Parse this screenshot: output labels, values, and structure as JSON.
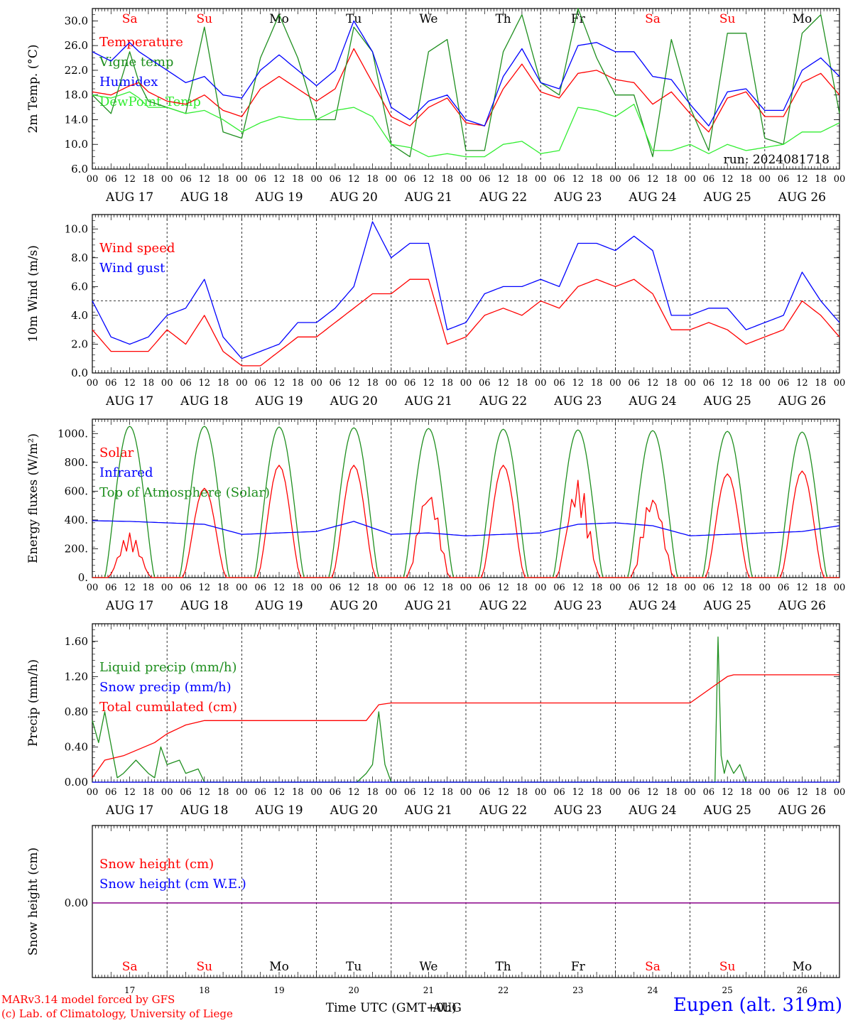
{
  "colors": {
    "red": "#ff0000",
    "dark_green": "#1f8f1f",
    "blue": "#0000ff",
    "light_green": "#33ee33",
    "purple": "#880088"
  },
  "days": {
    "abbr": [
      "Sa",
      "Su",
      "Mo",
      "Tu",
      "We",
      "Th",
      "Fr",
      "Sa",
      "Su",
      "Mo"
    ],
    "weekend": [
      true,
      true,
      false,
      false,
      false,
      false,
      false,
      true,
      true,
      false
    ],
    "labels": [
      "AUG 17",
      "AUG 18",
      "AUG 19",
      "AUG 20",
      "AUG 21",
      "AUG 22",
      "AUG 23",
      "AUG 24",
      "AUG 25",
      "AUG 26"
    ],
    "numbers": [
      "17",
      "18",
      "19",
      "20",
      "21",
      "22",
      "23",
      "24",
      "25",
      "26"
    ],
    "hour_ticks": [
      "00",
      "06",
      "12",
      "18"
    ],
    "end_tick": "00"
  },
  "footer": {
    "credit_line1": "MARv3.14 model forced by GFS",
    "credit_line2": "(c) Lab. of Climatology, University of Liege",
    "xlabel": "Time UTC (GMT+0h)",
    "month": "AUG",
    "station": "Eupen (alt. 319m)"
  },
  "chart_data": [
    {
      "type": "line",
      "ylabel": "2m Temp. (°C)",
      "ylim": [
        6,
        32
      ],
      "yticks": [
        "30.0",
        "26.0",
        "22.0",
        "18.0",
        "14.0",
        "10.0",
        "6.0"
      ],
      "run_label": "run: 2024081718",
      "x_unit": "hours since 2024-08-17 00 UTC",
      "series": [
        {
          "name": "Temperature",
          "color": "red",
          "x": [
            0,
            6,
            12,
            15,
            18,
            24,
            30,
            36,
            42,
            48,
            54,
            60,
            66,
            72,
            78,
            84,
            90,
            96,
            102,
            108,
            114,
            120,
            126,
            132,
            138,
            144,
            150,
            156,
            162,
            168,
            174,
            180,
            186,
            192,
            198,
            204,
            210,
            216,
            222,
            228,
            234,
            240
          ],
          "values": [
            18.5,
            18,
            19.5,
            20,
            18.5,
            17,
            16.5,
            18,
            15.5,
            14.5,
            19,
            21,
            19,
            17,
            19,
            25.5,
            20,
            14.5,
            13,
            16,
            17.5,
            13.5,
            13,
            19,
            23,
            18.5,
            17.5,
            21.5,
            22,
            20.5,
            20,
            16.5,
            18.5,
            15,
            12,
            17.5,
            18.5,
            14.5,
            14.5,
            20,
            21.5,
            18
          ]
        },
        {
          "name": "Vigne temp",
          "color": "dark_green",
          "x": [
            0,
            6,
            12,
            15,
            18,
            24,
            30,
            36,
            42,
            48,
            54,
            60,
            66,
            72,
            78,
            84,
            90,
            96,
            102,
            108,
            114,
            120,
            126,
            132,
            138,
            144,
            150,
            156,
            162,
            168,
            174,
            180,
            186,
            192,
            198,
            204,
            210,
            216,
            222,
            228,
            234,
            240
          ],
          "values": [
            18,
            15,
            25,
            20,
            17,
            16,
            15,
            29,
            12,
            11,
            24,
            31,
            24,
            14,
            14,
            29,
            25,
            10,
            8,
            25,
            27,
            9,
            9,
            25,
            31,
            20,
            18,
            32,
            24,
            18,
            18,
            8,
            27,
            16,
            9,
            28,
            28,
            11,
            10,
            28,
            31,
            15
          ]
        },
        {
          "name": "Humidex",
          "color": "blue",
          "x": [
            0,
            6,
            12,
            15,
            18,
            24,
            30,
            36,
            42,
            48,
            54,
            60,
            66,
            72,
            78,
            84,
            90,
            96,
            102,
            108,
            114,
            120,
            126,
            132,
            138,
            144,
            150,
            156,
            162,
            168,
            174,
            180,
            186,
            192,
            198,
            204,
            210,
            216,
            222,
            228,
            234,
            240
          ],
          "values": [
            25,
            23.5,
            26.5,
            25,
            24,
            22,
            20,
            21,
            18,
            17.5,
            22,
            24.5,
            22,
            19.5,
            22,
            30,
            25,
            16,
            14,
            17,
            18,
            14,
            13,
            21,
            25.5,
            20,
            19,
            26,
            26.5,
            25,
            25,
            21,
            20.5,
            16.5,
            13,
            18.5,
            19,
            15.5,
            15.5,
            22,
            24,
            21
          ]
        },
        {
          "name": "DewPoint Temp",
          "color": "light_green",
          "x": [
            0,
            6,
            12,
            15,
            18,
            24,
            30,
            36,
            42,
            48,
            54,
            60,
            66,
            72,
            78,
            84,
            90,
            96,
            102,
            108,
            114,
            120,
            126,
            132,
            138,
            144,
            150,
            156,
            162,
            168,
            174,
            180,
            186,
            192,
            198,
            204,
            210,
            216,
            222,
            228,
            234,
            240
          ],
          "values": [
            18,
            17.5,
            18.5,
            17.5,
            16,
            16,
            15,
            15.5,
            14,
            12,
            13.5,
            14.5,
            14,
            14,
            15.5,
            16,
            14.5,
            10,
            9.5,
            8,
            8.5,
            8,
            8,
            10,
            10.5,
            8.5,
            9,
            16,
            15.5,
            14.5,
            16.5,
            9,
            9,
            10,
            8.5,
            10,
            9,
            9.5,
            10,
            12,
            12,
            13.5
          ]
        }
      ]
    },
    {
      "type": "line",
      "ylabel": "10m Wind (m/s)",
      "ylim": [
        0,
        11
      ],
      "yticks": [
        "10.0",
        "8.0",
        "6.0",
        "4.0",
        "2.0",
        "0.0"
      ],
      "reference_line": 5,
      "x_unit": "hours since 2024-08-17 00 UTC",
      "series": [
        {
          "name": "Wind speed",
          "color": "red",
          "x": [
            0,
            6,
            12,
            18,
            24,
            30,
            36,
            42,
            48,
            54,
            60,
            66,
            72,
            78,
            84,
            90,
            96,
            102,
            108,
            114,
            120,
            126,
            132,
            138,
            144,
            150,
            156,
            162,
            168,
            174,
            180,
            186,
            192,
            198,
            204,
            210,
            216,
            222,
            228,
            234,
            240
          ],
          "values": [
            3,
            1.5,
            1.5,
            1.5,
            3,
            2,
            4,
            1.5,
            0.5,
            0.5,
            1.5,
            2.5,
            2.5,
            3.5,
            4.5,
            5.5,
            5.5,
            6.5,
            6.5,
            2,
            2.5,
            4,
            4.5,
            4,
            5,
            4.5,
            6,
            6.5,
            6,
            6.5,
            5.5,
            3,
            3,
            3.5,
            3,
            2,
            2.5,
            3,
            5,
            4,
            2.5
          ]
        },
        {
          "name": "Wind gust",
          "color": "blue",
          "x": [
            0,
            6,
            12,
            18,
            24,
            30,
            36,
            42,
            48,
            54,
            60,
            66,
            72,
            78,
            84,
            90,
            96,
            102,
            108,
            114,
            120,
            126,
            132,
            138,
            144,
            150,
            156,
            162,
            168,
            174,
            180,
            186,
            192,
            198,
            204,
            210,
            216,
            222,
            228,
            234,
            240
          ],
          "values": [
            5,
            2.5,
            2,
            2.5,
            4,
            4.5,
            6.5,
            2.5,
            1,
            1.5,
            2,
            3.5,
            3.5,
            4.5,
            6,
            10.5,
            8,
            9,
            9,
            3,
            3.5,
            5.5,
            6,
            6,
            6.5,
            6,
            9,
            9,
            8.5,
            9.5,
            8.5,
            4,
            4,
            4.5,
            4.5,
            3,
            3.5,
            4,
            7,
            5,
            3.5
          ]
        }
      ]
    },
    {
      "type": "line",
      "ylabel": "Energy fluxes (W/m²)",
      "ylim": [
        0,
        1100
      ],
      "yticks": [
        "1000.",
        "800.",
        "600.",
        "400.",
        "200.",
        "0."
      ],
      "daily_peaks": {
        "solar": [
          310,
          620,
          780,
          780,
          630,
          780,
          690,
          600,
          720,
          740
        ],
        "top_of_atmosphere": [
          1050,
          1050,
          1045,
          1040,
          1035,
          1030,
          1025,
          1020,
          1015,
          1010
        ]
      },
      "series": [
        {
          "name": "Solar",
          "color": "red"
        },
        {
          "name": "Infrared",
          "color": "blue",
          "x": [
            0,
            12,
            24,
            36,
            48,
            60,
            72,
            84,
            96,
            108,
            120,
            132,
            144,
            156,
            168,
            180,
            192,
            204,
            216,
            228,
            240
          ],
          "values": [
            395,
            390,
            380,
            370,
            300,
            310,
            320,
            390,
            300,
            310,
            290,
            300,
            310,
            370,
            380,
            360,
            290,
            300,
            310,
            320,
            360
          ]
        },
        {
          "name": "Top of Atmosphere (Solar)",
          "color": "dark_green"
        }
      ]
    },
    {
      "type": "line",
      "ylabel": "Precip (mm/h)",
      "ylim": [
        0,
        1.8
      ],
      "yticks": [
        "1.60",
        "1.20",
        "0.80",
        "0.40",
        "0.00"
      ],
      "series": [
        {
          "name": "Liquid precip (mm/h)",
          "color": "dark_green",
          "x": [
            0,
            2,
            4,
            8,
            10,
            14,
            18,
            20,
            22,
            24,
            28,
            30,
            34,
            36,
            85,
            88,
            90,
            92,
            94,
            96,
            98,
            100,
            200,
            201,
            202,
            203,
            204,
            206,
            208,
            210
          ],
          "values": [
            0.7,
            0.45,
            0.8,
            0.05,
            0.1,
            0.25,
            0.1,
            0.05,
            0.4,
            0.2,
            0.25,
            0.1,
            0.15,
            0,
            0,
            0.1,
            0.2,
            0.8,
            0.2,
            0,
            0,
            0,
            0,
            1.65,
            0.3,
            0.1,
            0.25,
            0.1,
            0.2,
            0
          ]
        },
        {
          "name": "Snow precip (mm/h)",
          "color": "blue",
          "x": [
            0,
            240
          ],
          "values": [
            0,
            0
          ]
        },
        {
          "name": "Total cumulated (cm)",
          "color": "red",
          "x": [
            0,
            4,
            10,
            20,
            24,
            30,
            36,
            48,
            72,
            88,
            92,
            96,
            120,
            144,
            168,
            192,
            198,
            202,
            204,
            206,
            210,
            240
          ],
          "values": [
            0.05,
            0.25,
            0.3,
            0.45,
            0.55,
            0.65,
            0.7,
            0.7,
            0.7,
            0.7,
            0.88,
            0.9,
            0.9,
            0.9,
            0.9,
            0.9,
            1.05,
            1.15,
            1.2,
            1.22,
            1.22,
            1.22
          ]
        }
      ]
    },
    {
      "type": "line",
      "ylabel": "Snow height (cm)",
      "yticks": [
        "0.00"
      ],
      "series": [
        {
          "name": "Snow height (cm)",
          "color": "red",
          "x": [
            0,
            240
          ],
          "values": [
            0,
            0
          ]
        },
        {
          "name": "Snow height (cm W.E.)",
          "color": "blue",
          "x": [
            0,
            240
          ],
          "values": [
            0,
            0
          ]
        }
      ]
    }
  ]
}
